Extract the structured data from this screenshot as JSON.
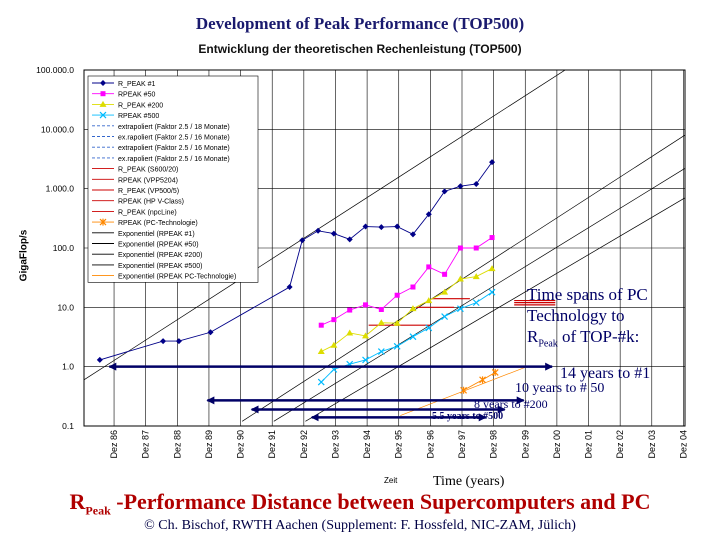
{
  "title": "Development of Peak Performance (TOP500)",
  "subtitle": "Entwicklung der theoretischen Rechenleistung (TOP500)",
  "annotation": {
    "line1": "Time  spans  of  PC",
    "line2": "Technology  to",
    "rpeak_r": "R",
    "rpeak_sub": "Peak",
    "line3_tail": " of  TOP-#k:"
  },
  "spans": [
    {
      "label": "14 years to #1",
      "years": 14
    },
    {
      "label": "10 years to # 50",
      "years": 10
    },
    {
      "label": "8 years to #200",
      "years": 8
    },
    {
      "label": "5.5 years to #500",
      "years": 5.5
    }
  ],
  "bottom_title": {
    "r": "R",
    "sub": "Peak",
    "rest": " -Performance Distance between Supercomputers and PC"
  },
  "credit": "©  Ch. Bischof, RWTH Aachen (Supplement: F. Hossfeld, NIC-ZAM, Jülich)",
  "chart_data": {
    "type": "line",
    "title": "Entwicklung der theoretischen Rechenleistung (TOP500)",
    "xlabel": "Time (years)",
    "xlabel_small": "Zeit",
    "ylabel": "GigaFlop/s",
    "yscale": "log",
    "ylim": [
      0.1,
      100000
    ],
    "y_ticks": [
      "0.1",
      "1.0",
      "10.0",
      "100.0",
      "1.000.0",
      "10.000.0",
      "100.000.0"
    ],
    "x_ticks": [
      "Dez 86",
      "Dez 87",
      "Dez 88",
      "Dez 89",
      "Dez 90",
      "Dez 91",
      "Dez 92",
      "Dez 93",
      "Dez 94",
      "Dez 95",
      "Dez 96",
      "Dez 97",
      "Dez 98",
      "Dez 99",
      "Dez 00",
      "Dez 01",
      "Dez 02",
      "Dez 03",
      "Dez 04"
    ],
    "legend": [
      "R_PEAK   #1",
      "RPEAK   #50",
      "R_PEAK  #200",
      "RPEAK #500",
      "extrapoliert (Faktor 2.5 / 18 Monate)",
      "ex.rapoliert (Faktor 2.5 / 16 Monate)",
      "extrapoliert (Faktor 2.5 / 16 Monate)",
      "ex.rapoliert (Faktor 2.5 / 16 Monate)",
      "R_PEAK (S600/20)",
      "RPEAK (VPP5204)",
      "R_PEAK (VP500/5)",
      "RPEAK (HP V-Class)",
      "R_PEAK (npcLine)",
      "RPEAK (PC-Technologie)",
      "Exponentiel (RPEAK    #1)",
      "Exponentiel (RPEAK   #50)",
      "Exponentiel (RPEAK  #200)",
      "Exponentiel (RPEAK  #500)",
      "Exponentiel (RPEAK PC-Technologie)"
    ],
    "series": [
      {
        "name": "RPEAK #1",
        "color": "#000088",
        "marker": "diamond",
        "x": [
          1986.5,
          1988.5,
          1989.0,
          1990.0,
          1992.5,
          1992.9,
          1993.4,
          1993.9,
          1994.4,
          1994.9,
          1995.4,
          1995.9,
          1996.4,
          1996.9,
          1997.4,
          1997.9,
          1998.4,
          1998.9
        ],
        "y": [
          1.3,
          2.7,
          2.7,
          3.8,
          22,
          135,
          195,
          175,
          140,
          230,
          225,
          230,
          170,
          370,
          900,
          1100,
          1200,
          2800
        ]
      },
      {
        "name": "RPEAK #50",
        "color": "#ff00ff",
        "marker": "square",
        "x": [
          1993.5,
          1993.9,
          1994.4,
          1994.9,
          1995.4,
          1995.9,
          1996.4,
          1996.9,
          1997.4,
          1997.9,
          1998.4,
          1998.9
        ],
        "y": [
          5.0,
          6.2,
          9.0,
          11,
          9.2,
          16,
          22,
          48,
          36,
          100,
          100,
          150
        ]
      },
      {
        "name": "RPEAK #200",
        "color": "#dddd00",
        "marker": "triangle",
        "x": [
          1993.5,
          1993.9,
          1994.4,
          1994.9,
          1995.4,
          1995.9,
          1996.4,
          1996.9,
          1997.4,
          1997.9,
          1998.4,
          1998.9
        ],
        "y": [
          1.8,
          2.3,
          3.7,
          3.3,
          5.5,
          5.4,
          9.5,
          13,
          18,
          30,
          33,
          45
        ]
      },
      {
        "name": "RPEAK #500",
        "color": "#00bbff",
        "marker": "x",
        "x": [
          1993.5,
          1993.9,
          1994.4,
          1994.9,
          1995.4,
          1995.9,
          1996.4,
          1996.9,
          1997.4,
          1997.9,
          1998.4,
          1998.9
        ],
        "y": [
          0.55,
          0.9,
          1.1,
          1.3,
          1.8,
          2.2,
          3.2,
          4.5,
          7.0,
          9.5,
          12,
          18
        ]
      },
      {
        "name": "RPEAK (PC-Technologie)",
        "color": "#ff8800",
        "marker": "star",
        "x": [
          1998.0,
          1998.6,
          1999.0
        ],
        "y": [
          0.4,
          0.6,
          0.8
        ]
      }
    ],
    "trend_lines": [
      {
        "name": "Exponentiel (RPEAK #1)",
        "color": "#000000",
        "x": [
          1986,
          2005
        ],
        "y": [
          0.6,
          2000000
        ]
      },
      {
        "name": "Exponentiel (RPEAK #50)",
        "color": "#000000",
        "x": [
          1991,
          2005
        ],
        "y": [
          0.12,
          8000
        ]
      },
      {
        "name": "Exponentiel (RPEAK #200)",
        "color": "#000000",
        "x": [
          1992,
          2005
        ],
        "y": [
          0.12,
          2200
        ]
      },
      {
        "name": "Exponentiel (RPEAK #500)",
        "color": "#000000",
        "x": [
          1993,
          2005
        ],
        "y": [
          0.12,
          700
        ]
      },
      {
        "name": "Exponentiel (RPEAK PC-Technologie)",
        "color": "#ff8800",
        "x": [
          1996,
          2000
        ],
        "y": [
          0.15,
          1.0
        ]
      }
    ],
    "span_arrows": [
      {
        "label": "14 years to #1",
        "x": [
          1986.8,
          2000.8
        ],
        "y": 1.0
      },
      {
        "label": "10 years to # 50",
        "x": [
          1989.9,
          1999.9
        ],
        "y": 0.27
      },
      {
        "label": "8 years to #200",
        "x": [
          1991.3,
          1999.3
        ],
        "y": 0.19
      },
      {
        "label": "5.5 years to #500",
        "x": [
          1993.2,
          1998.7
        ],
        "y": 0.14
      }
    ],
    "extrapolation_segments": [
      {
        "x": [
          1995.0,
          1997.0
        ],
        "y": 5.0,
        "color": "#cc0000"
      },
      {
        "x": [
          1996.5,
          1997.7
        ],
        "y": 10.0,
        "color": "#cc0000"
      },
      {
        "x": [
          1997.0,
          1998.2
        ],
        "y": 14.0,
        "color": "#cc0000"
      },
      {
        "x": [
          1999.6,
          2000.9
        ],
        "y": 11.0,
        "color": "#cc0000"
      },
      {
        "x": [
          1999.6,
          2000.9
        ],
        "y": 12.0,
        "color": "#cc0000"
      },
      {
        "x": [
          1999.6,
          2000.9
        ],
        "y": 13.0,
        "color": "#cc0000"
      }
    ]
  }
}
